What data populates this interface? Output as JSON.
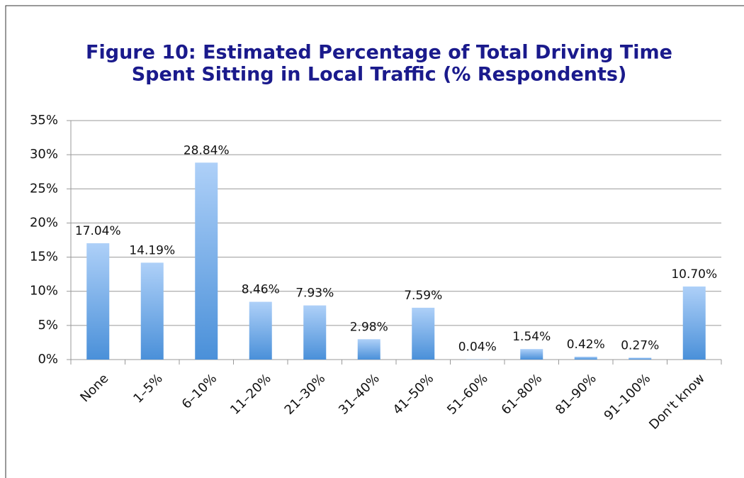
{
  "chart_data": {
    "type": "bar",
    "title": [
      "Figure 10: Estimated Percentage of Total Driving Time",
      "Spent Sitting in Local Traffic (% Respondents)"
    ],
    "categories": [
      "None",
      "1–5%",
      "6–10%",
      "11–20%",
      "21–30%",
      "31–40%",
      "41–50%",
      "51–60%",
      "61–80%",
      "81–90%",
      "91–100%",
      "Don't know"
    ],
    "values": [
      17.04,
      14.19,
      28.84,
      8.46,
      7.93,
      2.98,
      7.59,
      0.04,
      1.54,
      0.42,
      0.27,
      10.7
    ],
    "value_labels": [
      "17.04%",
      "14.19%",
      "28.84%",
      "8.46%",
      "7.93%",
      "2.98%",
      "7.59%",
      "0.04%",
      "1.54%",
      "0.42%",
      "0.27%",
      "10.70%"
    ],
    "color": "#4a90d9",
    "ylim": [
      0,
      35
    ],
    "yticks": [
      {
        "value": 0,
        "label": "0%"
      },
      {
        "value": 5,
        "label": "5%"
      },
      {
        "value": 10,
        "label": "10%"
      },
      {
        "value": 15,
        "label": "15%"
      },
      {
        "value": 20,
        "label": "20%"
      },
      {
        "value": 25,
        "label": "25%"
      },
      {
        "value": 30,
        "label": "30%"
      },
      {
        "value": 35,
        "label": "35%"
      }
    ],
    "grid": true
  }
}
